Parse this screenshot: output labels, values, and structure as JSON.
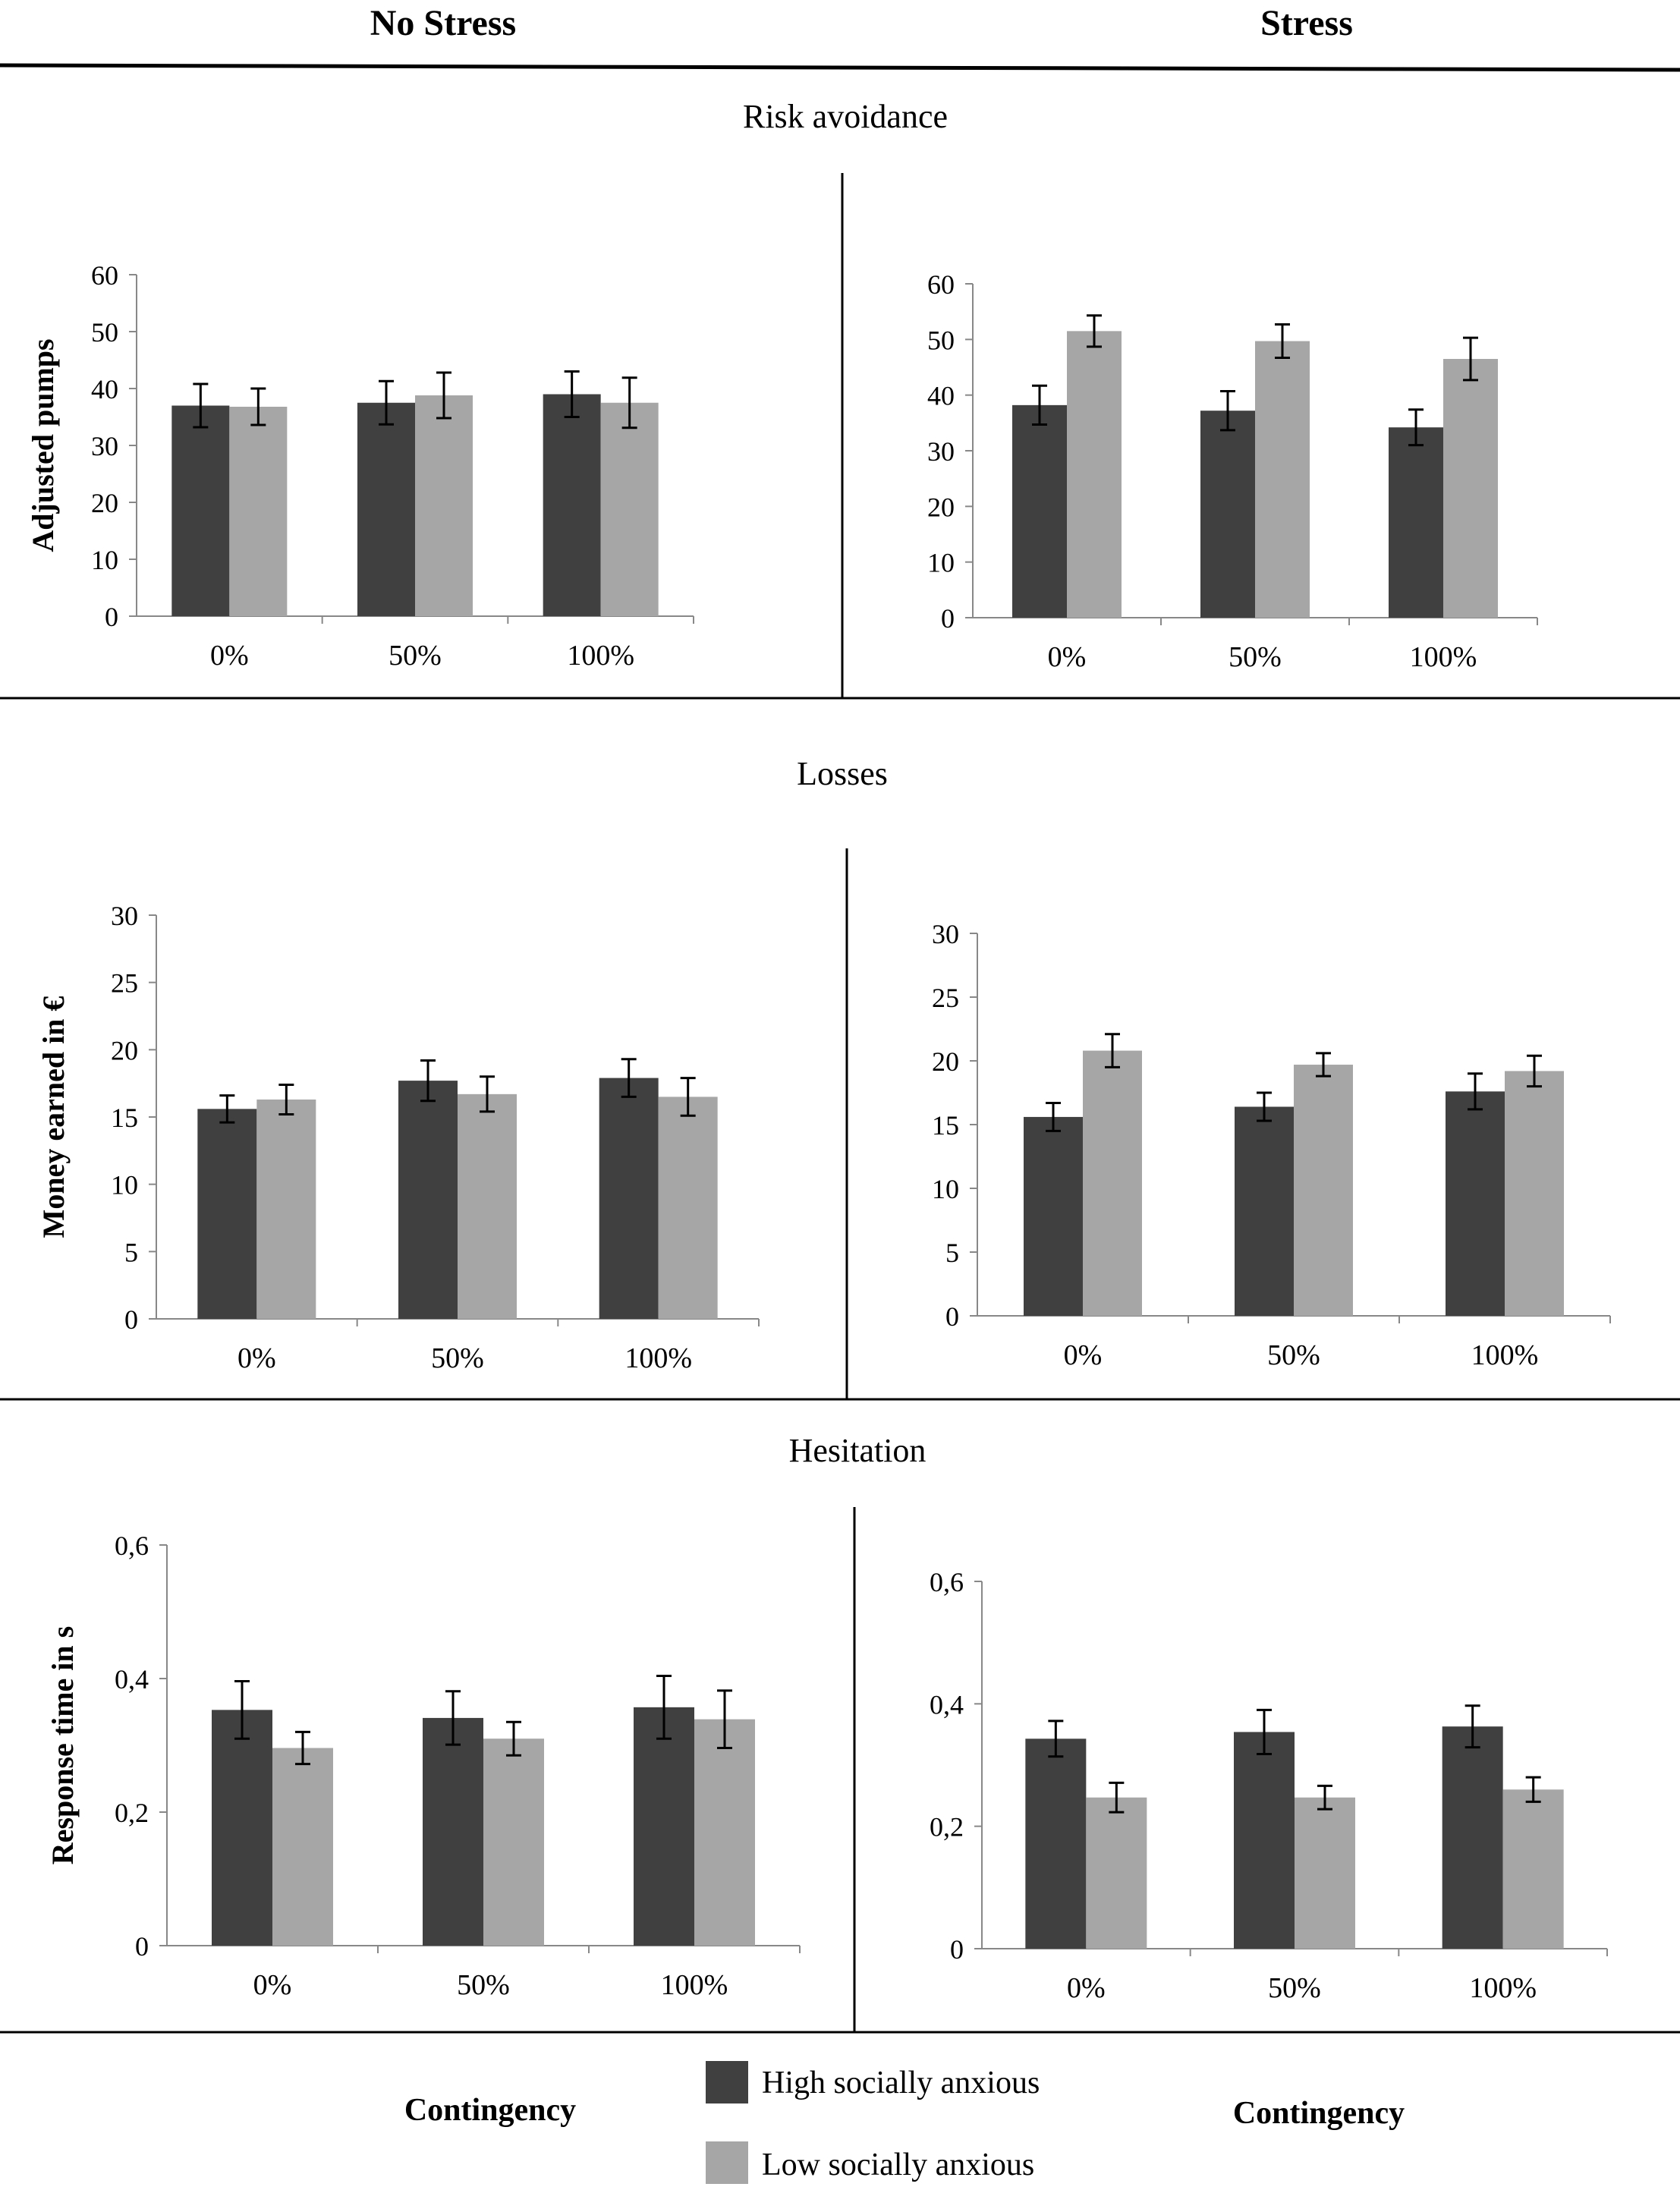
{
  "columns": {
    "left": "No Stress",
    "right": "Stress"
  },
  "sections": [
    "Risk avoidance",
    "Losses",
    "Hesitation"
  ],
  "xlabel": "Contingency",
  "legend": {
    "high": "High socially anxious",
    "low": "Low socially anxious"
  },
  "colors": {
    "high": "#404040",
    "low": "#a6a6a6",
    "axis": "#888888",
    "divider": "#000000"
  },
  "chart_data": [
    {
      "id": "risk-no-stress",
      "type": "bar",
      "title": "Risk avoidance",
      "condition": "No Stress",
      "categories": [
        "0%",
        "50%",
        "100%"
      ],
      "series": [
        {
          "name": "High socially anxious",
          "values": [
            37,
            37.5,
            39
          ],
          "errors": [
            3.8,
            3.8,
            4
          ]
        },
        {
          "name": "Low socially anxious",
          "values": [
            36.8,
            38.8,
            37.5
          ],
          "errors": [
            3.2,
            4,
            4.4
          ]
        }
      ],
      "ylabel": "Adjusted pumps",
      "ylim": [
        0,
        60
      ],
      "yticks": [
        0,
        10,
        20,
        30,
        40,
        50,
        60
      ],
      "ytick_labels": [
        "0",
        "10",
        "20",
        "30",
        "40",
        "50",
        "60"
      ]
    },
    {
      "id": "risk-stress",
      "type": "bar",
      "title": "Risk avoidance",
      "condition": "Stress",
      "categories": [
        "0%",
        "50%",
        "100%"
      ],
      "series": [
        {
          "name": "High socially anxious",
          "values": [
            38.2,
            37.2,
            34.2
          ],
          "errors": [
            3.5,
            3.5,
            3.2
          ]
        },
        {
          "name": "Low socially anxious",
          "values": [
            51.5,
            49.7,
            46.5
          ],
          "errors": [
            2.8,
            3,
            3.8
          ]
        }
      ],
      "ylabel": "",
      "ylim": [
        0,
        60
      ],
      "yticks": [
        0,
        10,
        20,
        30,
        40,
        50,
        60
      ],
      "ytick_labels": [
        "0",
        "10",
        "20",
        "30",
        "40",
        "50",
        "60"
      ]
    },
    {
      "id": "losses-no-stress",
      "type": "bar",
      "title": "Losses",
      "condition": "No Stress",
      "categories": [
        "0%",
        "50%",
        "100%"
      ],
      "series": [
        {
          "name": "High socially anxious",
          "values": [
            15.6,
            17.7,
            17.9
          ],
          "errors": [
            1,
            1.5,
            1.4
          ]
        },
        {
          "name": "Low socially anxious",
          "values": [
            16.3,
            16.7,
            16.5
          ],
          "errors": [
            1.1,
            1.3,
            1.4
          ]
        }
      ],
      "ylabel": "Money earned in €",
      "ylim": [
        0,
        30
      ],
      "yticks": [
        0,
        5,
        10,
        15,
        20,
        25,
        30
      ],
      "ytick_labels": [
        "0",
        "5",
        "10",
        "15",
        "20",
        "25",
        "30"
      ]
    },
    {
      "id": "losses-stress",
      "type": "bar",
      "title": "Losses",
      "condition": "Stress",
      "categories": [
        "0%",
        "50%",
        "100%"
      ],
      "series": [
        {
          "name": "High socially anxious",
          "values": [
            15.6,
            16.4,
            17.6
          ],
          "errors": [
            1.1,
            1.1,
            1.4
          ]
        },
        {
          "name": "Low socially anxious",
          "values": [
            20.8,
            19.7,
            19.2
          ],
          "errors": [
            1.3,
            0.9,
            1.2
          ]
        }
      ],
      "ylabel": "",
      "ylim": [
        0,
        30
      ],
      "yticks": [
        0,
        5,
        10,
        15,
        20,
        25,
        30
      ],
      "ytick_labels": [
        "0",
        "5",
        "10",
        "15",
        "20",
        "25",
        "30"
      ]
    },
    {
      "id": "hesitation-no-stress",
      "type": "bar",
      "title": "Hesitation",
      "condition": "No Stress",
      "categories": [
        "0%",
        "50%",
        "100%"
      ],
      "series": [
        {
          "name": "High socially anxious",
          "values": [
            0.353,
            0.341,
            0.357
          ],
          "errors": [
            0.043,
            0.04,
            0.047
          ]
        },
        {
          "name": "Low socially anxious",
          "values": [
            0.296,
            0.31,
            0.339
          ],
          "errors": [
            0.024,
            0.025,
            0.043
          ]
        }
      ],
      "ylabel": "Response time in s",
      "ylim": [
        0,
        0.6
      ],
      "yticks": [
        0,
        0.2,
        0.4,
        0.6
      ],
      "ytick_labels": [
        "0",
        "0,2",
        "0,4",
        "0,6"
      ]
    },
    {
      "id": "hesitation-stress",
      "type": "bar",
      "title": "Hesitation",
      "condition": "Stress",
      "categories": [
        "0%",
        "50%",
        "100%"
      ],
      "series": [
        {
          "name": "High socially anxious",
          "values": [
            0.343,
            0.354,
            0.363
          ],
          "errors": [
            0.029,
            0.036,
            0.034
          ]
        },
        {
          "name": "Low socially anxious",
          "values": [
            0.247,
            0.247,
            0.26
          ],
          "errors": [
            0.024,
            0.019,
            0.02
          ]
        }
      ],
      "ylabel": "",
      "ylim": [
        0,
        0.6
      ],
      "yticks": [
        0,
        0.2,
        0.4,
        0.6
      ],
      "ytick_labels": [
        "0",
        "0,2",
        "0,4",
        "0,6"
      ]
    }
  ]
}
